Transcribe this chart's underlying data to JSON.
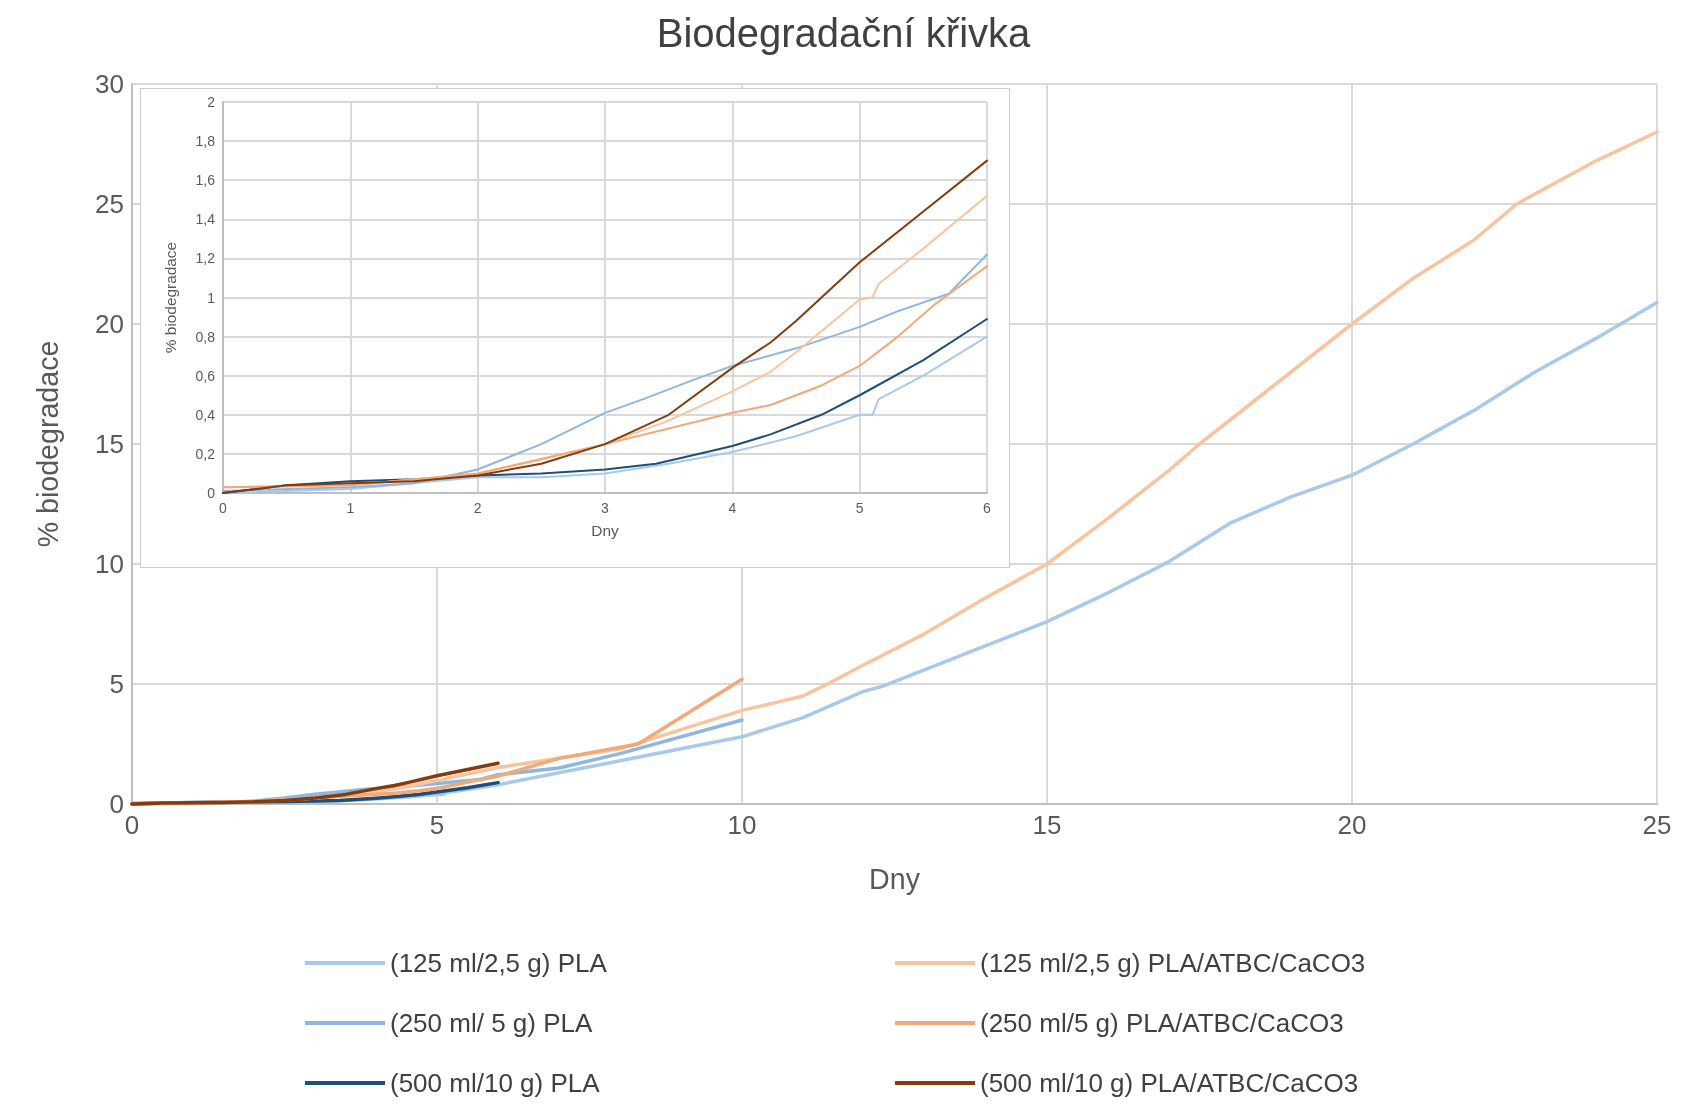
{
  "chart_data": [
    {
      "type": "line",
      "title": "Biodegradační křivka",
      "xlabel": "Dny",
      "ylabel": "% biodegradace",
      "xlim": [
        0,
        25
      ],
      "xticks": [
        0,
        5,
        10,
        15,
        20,
        25
      ],
      "ylim": [
        0,
        30
      ],
      "yticks": [
        0,
        5,
        10,
        15,
        20,
        25,
        30
      ],
      "grid": true,
      "legend": "bottom",
      "series": [
        {
          "name": "(125 ml/2,5 g) PLA",
          "color": "#a9c9ea",
          "x": [
            0,
            1,
            2,
            2.5,
            3,
            3.5,
            4,
            4.5,
            5,
            5.1,
            5.15,
            5.5,
            6,
            8,
            10,
            11,
            12,
            12.3,
            13,
            14,
            15,
            16,
            17,
            18,
            19,
            20,
            21,
            22,
            23,
            24,
            25
          ],
          "values": [
            0,
            0.02,
            0.08,
            0.08,
            0.1,
            0.15,
            0.21,
            0.29,
            0.4,
            0.4,
            0.48,
            0.6,
            0.8,
            1.8,
            2.8,
            3.6,
            4.7,
            4.9,
            5.6,
            6.6,
            7.6,
            8.8,
            10.1,
            11.7,
            12.8,
            13.7,
            15.0,
            16.4,
            18.0,
            19.4,
            20.9
          ]
        },
        {
          "name": "(250 ml/ 5 g) PLA",
          "color": "#8fb6e0",
          "x": [
            0,
            1,
            1.5,
            2,
            2.5,
            3,
            3.3,
            3.7,
            4,
            4.5,
            5,
            5.3,
            5.7,
            6,
            7,
            8,
            10
          ],
          "values": [
            0.01,
            0.03,
            0.05,
            0.12,
            0.25,
            0.41,
            0.48,
            0.58,
            0.65,
            0.74,
            0.85,
            0.93,
            1.02,
            1.22,
            1.5,
            2.1,
            3.5
          ]
        },
        {
          "name": "(500 ml/10 g) PLA",
          "color": "#1f4e79",
          "x": [
            0,
            0.5,
            1,
            1.5,
            2,
            2.5,
            3,
            3.4,
            3.8,
            4,
            4.3,
            4.7,
            5,
            5.5,
            6
          ],
          "values": [
            0,
            0.04,
            0.06,
            0.07,
            0.09,
            0.1,
            0.12,
            0.15,
            0.21,
            0.24,
            0.3,
            0.4,
            0.5,
            0.68,
            0.89
          ]
        },
        {
          "name": "(125 ml/2,5 g) PLA/ATBC/CaCO3",
          "color": "#f8c4a0",
          "x": [
            0,
            1,
            2,
            2.5,
            3,
            3.5,
            4,
            4.3,
            4.5,
            5,
            5.1,
            5.15,
            5.5,
            6,
            8,
            10,
            11,
            11.4,
            12,
            13,
            14,
            15,
            16,
            17,
            17.5,
            18.5,
            19,
            20,
            21,
            22,
            22.7,
            24,
            25
          ],
          "values": [
            0.03,
            0.04,
            0.1,
            0.17,
            0.25,
            0.37,
            0.52,
            0.62,
            0.72,
            0.99,
            1.0,
            1.07,
            1.25,
            1.52,
            2.3,
            3.9,
            4.5,
            5.0,
            5.8,
            7.1,
            8.6,
            10.0,
            11.9,
            13.9,
            15.0,
            17.0,
            18.0,
            20.0,
            21.9,
            23.5,
            25.0,
            26.8,
            28.0
          ]
        },
        {
          "name": "(250 ml/5 g) PLA/ATBC/CaCO3",
          "color": "#f2a877",
          "x": [
            0,
            1,
            2,
            3,
            3.5,
            4,
            4.3,
            4.7,
            5,
            5.3,
            5.6,
            6,
            7,
            8.3,
            10
          ],
          "values": [
            0.03,
            0.04,
            0.1,
            0.25,
            0.33,
            0.41,
            0.45,
            0.55,
            0.65,
            0.8,
            0.97,
            1.16,
            1.9,
            2.5,
            5.2
          ]
        },
        {
          "name": "(500 ml/10 g) PLA/ATBC/CaCO3",
          "color": "#843c0c",
          "x": [
            0,
            0.5,
            1,
            1.5,
            2,
            2.5,
            3,
            3.5,
            4,
            4.3,
            4.5,
            5,
            5.5,
            6
          ],
          "values": [
            0,
            0.04,
            0.05,
            0.06,
            0.09,
            0.15,
            0.25,
            0.4,
            0.64,
            0.77,
            0.88,
            1.18,
            1.44,
            1.7
          ]
        }
      ]
    },
    {
      "type": "line",
      "xlabel": "Dny",
      "ylabel": "% biodegradace",
      "xlim": [
        0,
        6
      ],
      "xticks": [
        0,
        1,
        2,
        3,
        4,
        5,
        6
      ],
      "ylim": [
        0,
        2
      ],
      "yticks": [
        0,
        {
          "value": 0.2,
          "label": "0,2"
        },
        {
          "value": 0.4,
          "label": "0,4"
        },
        {
          "value": 0.6,
          "label": "0,6"
        },
        {
          "value": 0.8,
          "label": "0,8"
        },
        1,
        {
          "value": 1.2,
          "label": "1,2"
        },
        {
          "value": 1.4,
          "label": "1,4"
        },
        {
          "value": 1.6,
          "label": "1,6"
        },
        {
          "value": 1.8,
          "label": "1,8"
        },
        2
      ],
      "grid": true,
      "series": [
        {
          "color": "#a9c9ea",
          "x": [
            0,
            1,
            2,
            2.5,
            3,
            3.5,
            4,
            4.5,
            5,
            5.1,
            5.15,
            5.5,
            6
          ],
          "values": [
            0,
            0.02,
            0.08,
            0.08,
            0.1,
            0.15,
            0.21,
            0.29,
            0.4,
            0.4,
            0.48,
            0.6,
            0.8
          ]
        },
        {
          "color": "#8fb6e0",
          "x": [
            0,
            1,
            1.5,
            2,
            2.5,
            3,
            3.3,
            3.7,
            4,
            4.5,
            5,
            5.3,
            5.7,
            6
          ],
          "values": [
            0.01,
            0.03,
            0.05,
            0.12,
            0.25,
            0.41,
            0.48,
            0.58,
            0.65,
            0.74,
            0.85,
            0.93,
            1.02,
            1.22
          ]
        },
        {
          "color": "#1f4e79",
          "x": [
            0,
            0.5,
            1,
            1.5,
            2,
            2.5,
            3,
            3.4,
            3.8,
            4,
            4.3,
            4.7,
            5,
            5.5,
            6
          ],
          "values": [
            0,
            0.04,
            0.06,
            0.07,
            0.09,
            0.1,
            0.12,
            0.15,
            0.21,
            0.24,
            0.3,
            0.4,
            0.5,
            0.68,
            0.89
          ]
        },
        {
          "color": "#f8c4a0",
          "x": [
            0,
            1,
            2,
            2.5,
            3,
            3.5,
            4,
            4.3,
            4.5,
            5,
            5.1,
            5.15,
            5.5,
            6
          ],
          "values": [
            0.03,
            0.04,
            0.1,
            0.17,
            0.25,
            0.37,
            0.52,
            0.62,
            0.72,
            0.99,
            1.0,
            1.07,
            1.25,
            1.52
          ]
        },
        {
          "color": "#f2a877",
          "x": [
            0,
            1,
            2,
            3,
            3.5,
            4,
            4.3,
            4.7,
            5,
            5.3,
            5.6,
            6
          ],
          "values": [
            0.03,
            0.04,
            0.1,
            0.25,
            0.33,
            0.41,
            0.45,
            0.55,
            0.65,
            0.8,
            0.97,
            1.16
          ]
        },
        {
          "color": "#843c0c",
          "x": [
            0,
            0.5,
            1,
            1.5,
            2,
            2.5,
            3,
            3.5,
            4,
            4.3,
            4.5,
            5,
            5.5,
            6
          ],
          "values": [
            0,
            0.04,
            0.05,
            0.06,
            0.09,
            0.15,
            0.25,
            0.4,
            0.64,
            0.77,
            0.88,
            1.18,
            1.44,
            1.7
          ]
        }
      ]
    }
  ]
}
